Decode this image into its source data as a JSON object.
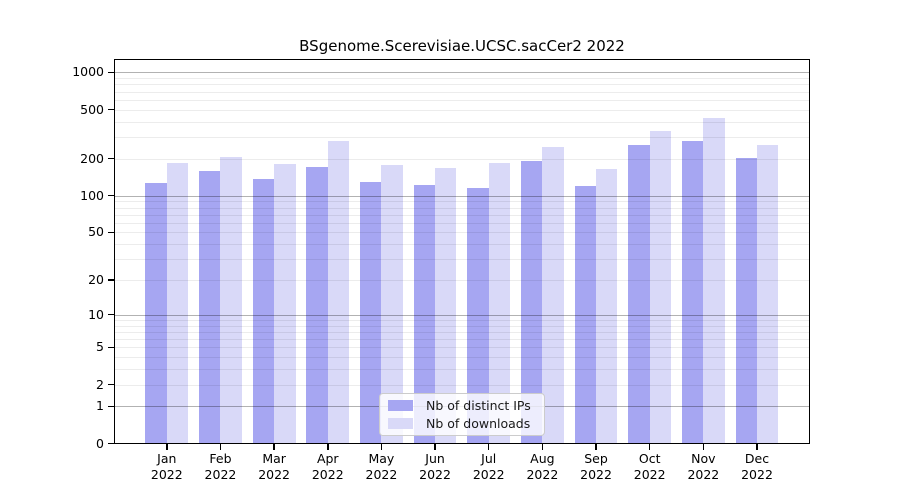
{
  "chart_data": {
    "type": "bar",
    "title": "BSgenome.Scerevisiae.UCSC.sacCer2 2022",
    "year_label": "2022",
    "categories": [
      "Jan",
      "Feb",
      "Mar",
      "Apr",
      "May",
      "Jun",
      "Jul",
      "Aug",
      "Sep",
      "Oct",
      "Nov",
      "Dec"
    ],
    "series": [
      {
        "name": "Nb of distinct IPs",
        "color": "#a6a6f2",
        "values": [
          128,
          160,
          137,
          173,
          129,
          122,
          115,
          193,
          120,
          260,
          278,
          202
        ]
      },
      {
        "name": "Nb of downloads",
        "color": "#d9d9f8",
        "values": [
          185,
          208,
          182,
          280,
          179,
          170,
          185,
          248,
          165,
          338,
          426,
          260
        ]
      }
    ],
    "yscale": "log1p",
    "yticks": [
      0,
      1,
      2,
      5,
      10,
      20,
      50,
      100,
      200,
      500,
      1000
    ],
    "ylim": [
      0,
      1270
    ],
    "xlabel": "",
    "ylabel": "",
    "grid": {
      "on": true,
      "drawn_over_bars": true,
      "minor_lines": [
        2,
        3,
        4,
        5,
        6,
        7,
        8,
        9,
        20,
        30,
        40,
        50,
        60,
        70,
        80,
        90,
        200,
        300,
        400,
        500,
        600,
        700,
        800,
        900
      ],
      "major_lines": [
        1,
        10,
        100,
        1000
      ],
      "minor_color": "#ececec",
      "major_color": "#b5b5b5"
    },
    "legend_position": "bottom-center"
  }
}
